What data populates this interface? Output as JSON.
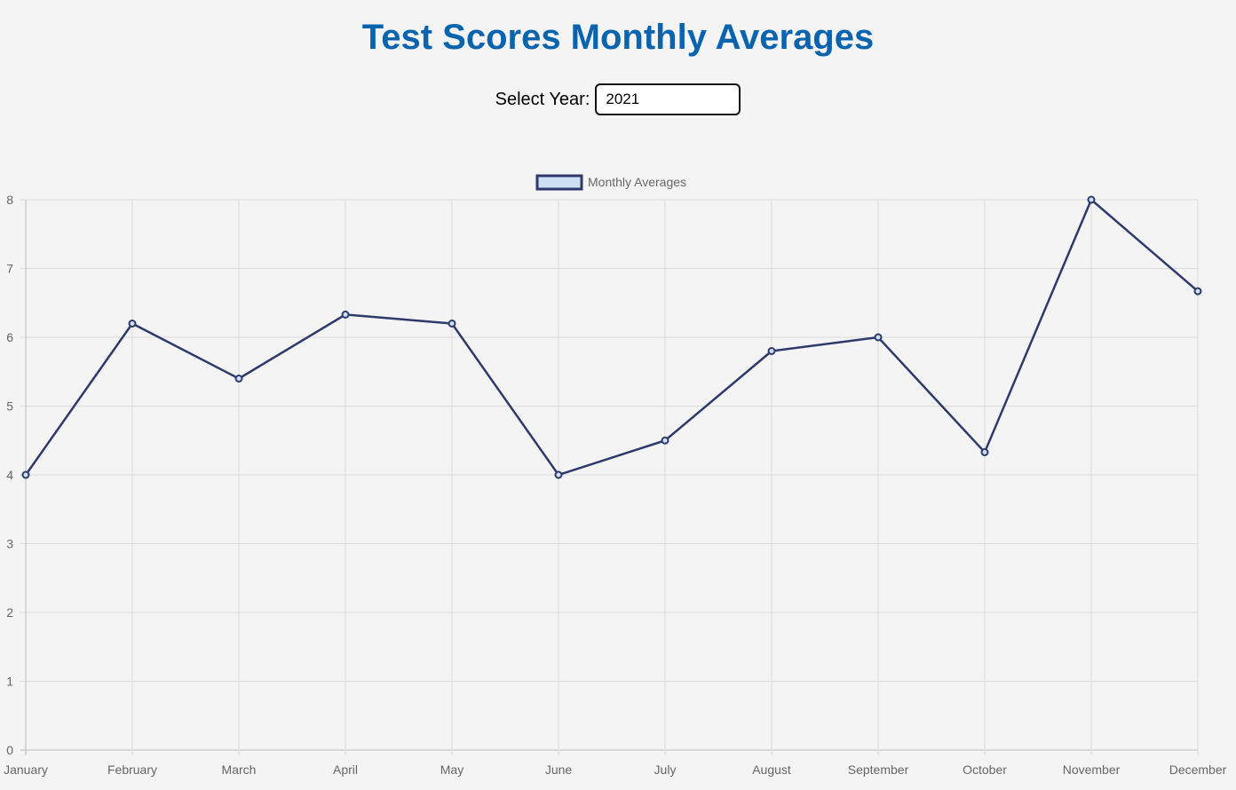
{
  "header": {
    "title": "Test Scores Monthly Averages"
  },
  "controls": {
    "year_label": "Select Year:",
    "year_value": "2021"
  },
  "chart_data": {
    "type": "line",
    "categories": [
      "January",
      "February",
      "March",
      "April",
      "May",
      "June",
      "July",
      "August",
      "September",
      "October",
      "November",
      "December"
    ],
    "series": [
      {
        "name": "Monthly Averages",
        "values": [
          4,
          6.2,
          5.4,
          6.33,
          6.2,
          4,
          4.5,
          5.8,
          6,
          4.33,
          8,
          6.67
        ],
        "line_color": "#2e3a6b",
        "fill_color": "#cde0f3"
      }
    ],
    "y_ticks": [
      0,
      1,
      2,
      3,
      4,
      5,
      6,
      7,
      8
    ],
    "ylim": [
      0,
      8
    ],
    "grid": true,
    "legend": "top-center"
  }
}
